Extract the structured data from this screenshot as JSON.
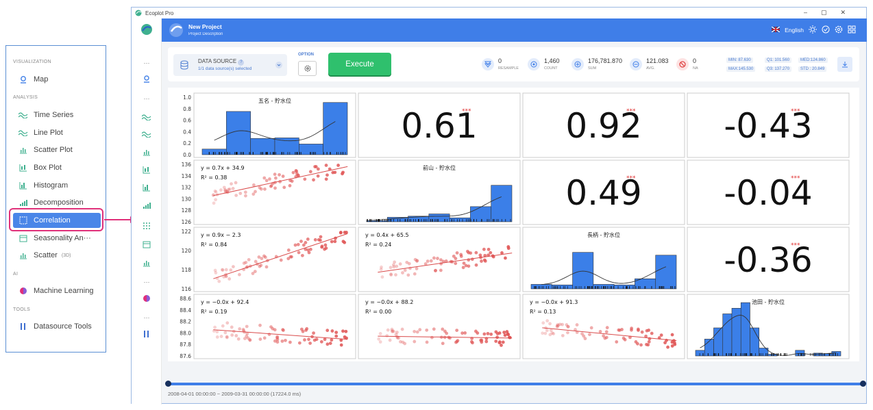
{
  "sidebar": {
    "sections": {
      "visualization": "VISUALIZATION",
      "analysis": "ANALYSIS",
      "ai": "AI",
      "tools": "TOOLS"
    },
    "items": {
      "map": "Map",
      "time_series": "Time Series",
      "line_plot": "Line Plot",
      "scatter_plot": "Scatter Plot",
      "box_plot": "Box Plot",
      "histogram": "Histogram",
      "decomposition": "Decomposition",
      "correlation": "Correlation",
      "seasonality": "Seasonality An···",
      "scatter": "Scatter",
      "scatter_badge": "(3D)",
      "machine_learning": "Machine Learning",
      "datasource_tools": "Datasource Tools"
    },
    "colors": {
      "accent": "#4a86e8",
      "highlight": "#e0307a"
    }
  },
  "window": {
    "title": "Ecoplot Pro"
  },
  "header": {
    "title": "New Project",
    "subtitle": "Project Description",
    "language": "English"
  },
  "toolbar": {
    "datasource_label": "DATA SOURCE",
    "datasource_badge": "?",
    "datasource_sub": "1/1 data source(s) selected",
    "option_label": "OPTION",
    "execute_label": "Execute"
  },
  "stats": [
    {
      "value": "0",
      "label": "RESAMPLE"
    },
    {
      "value": "1,460",
      "label": "COUNT"
    },
    {
      "value": "176,781.870",
      "label": "SUM"
    },
    {
      "value": "121.083",
      "label": "AVG."
    },
    {
      "value": "0",
      "label": "NA"
    }
  ],
  "quantiles": {
    "min": "MIN:  87.630",
    "q1": "Q1:  101.560",
    "med": "MED:124.860",
    "max": "MAX:145.530",
    "q3": "Q3:  137.270",
    "std": "STD :  20.849"
  },
  "time_range": "2008-04-01 00:00:00 ~ 2009-03-31 00:00:00  (17224.0 ms)",
  "chart_data": {
    "type": "pairplot",
    "variables": [
      "五名 - 貯水位",
      "前山 - 貯水位",
      "長柄 - 貯水位",
      "池田 - 貯水位"
    ],
    "correlations": [
      {
        "row": 0,
        "col": 1,
        "value": "0.61"
      },
      {
        "row": 0,
        "col": 2,
        "value": "0.92"
      },
      {
        "row": 0,
        "col": 3,
        "value": "-0.43"
      },
      {
        "row": 1,
        "col": 2,
        "value": "0.49"
      },
      {
        "row": 1,
        "col": 3,
        "value": "-0.04"
      },
      {
        "row": 2,
        "col": 3,
        "value": "-0.36"
      }
    ],
    "regressions": [
      {
        "row": 1,
        "col": 0,
        "eq": "y = 0.7x + 34.9",
        "r2": "R² = 0.38"
      },
      {
        "row": 2,
        "col": 0,
        "eq": "y = 0.9x − 2.3",
        "r2": "R² = 0.84"
      },
      {
        "row": 2,
        "col": 1,
        "eq": "y = 0.4x + 65.5",
        "r2": "R² = 0.24"
      },
      {
        "row": 3,
        "col": 0,
        "eq": "y = −0.0x + 92.4",
        "r2": "R² = 0.19"
      },
      {
        "row": 3,
        "col": 1,
        "eq": "y = −0.0x + 88.2",
        "r2": "R² = 0.00"
      },
      {
        "row": 3,
        "col": 2,
        "eq": "y = −0.0x + 91.3",
        "r2": "R² = 0.13"
      }
    ],
    "histograms": [
      {
        "var": 0,
        "values": [
          0.1,
          0.77,
          0.29,
          0.3,
          0.19,
          0.93
        ]
      },
      {
        "var": 1,
        "values": [
          0.02,
          0.08,
          0.1,
          0.14,
          0.07,
          0.27,
          0.65
        ]
      },
      {
        "var": 2,
        "values": [
          0.08,
          0.07,
          0.65,
          0.08,
          0.07,
          0.18,
          0.6
        ]
      },
      {
        "var": 3,
        "values": [
          0.1,
          0.3,
          0.5,
          0.75,
          0.85,
          0.95,
          0.5,
          0.14,
          0.03,
          0.0,
          0.0,
          0.1,
          0.0,
          0.05,
          0.04,
          0.08
        ]
      }
    ],
    "y_ticks": {
      "row0": [
        "1.0",
        "0.8",
        "0.6",
        "0.4",
        "0.2",
        "0.0"
      ],
      "row1": [
        "136",
        "134",
        "132",
        "130",
        "128",
        "126"
      ],
      "row2": [
        "122",
        "120",
        "118",
        "116"
      ],
      "row3": [
        "88.6",
        "88.4",
        "88.2",
        "88.0",
        "87.8",
        "87.6"
      ]
    },
    "x_ticks": {
      "col0": [
        "138",
        "140",
        "142",
        "144",
        "146"
      ],
      "col1": [
        "126",
        "128",
        "130",
        "132",
        "134",
        "136",
        "138"
      ],
      "col2": [
        "114",
        "116",
        "118",
        "120",
        "122",
        "124"
      ],
      "col3": [
        "87.6",
        "87.8",
        "88.0",
        "88.2",
        "88.4",
        "88.6"
      ]
    },
    "colors": {
      "bar": "#3b7fe8",
      "scatter": "#e05555",
      "fit": "#d94a4a",
      "kde": "#333333"
    }
  }
}
